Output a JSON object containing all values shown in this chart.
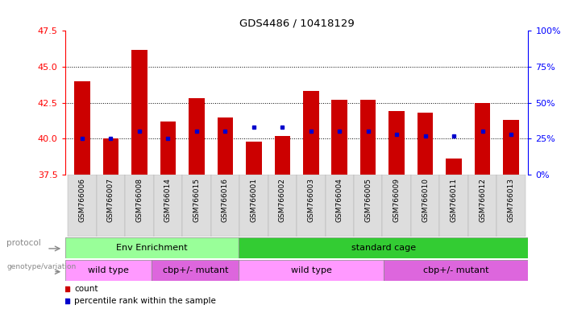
{
  "title": "GDS4486 / 10418129",
  "samples": [
    "GSM766006",
    "GSM766007",
    "GSM766008",
    "GSM766014",
    "GSM766015",
    "GSM766016",
    "GSM766001",
    "GSM766002",
    "GSM766003",
    "GSM766004",
    "GSM766005",
    "GSM766009",
    "GSM766010",
    "GSM766011",
    "GSM766012",
    "GSM766013"
  ],
  "counts": [
    44.0,
    40.0,
    46.2,
    41.2,
    42.8,
    41.5,
    39.8,
    40.2,
    43.3,
    42.7,
    42.7,
    41.9,
    41.8,
    38.6,
    42.5,
    41.3
  ],
  "percentiles": [
    25,
    25,
    30,
    25,
    30,
    30,
    33,
    33,
    30,
    30,
    30,
    28,
    27,
    27,
    30,
    28
  ],
  "ylim_left": [
    37.5,
    47.5
  ],
  "ylim_right": [
    0,
    100
  ],
  "yticks_left": [
    37.5,
    40.0,
    42.5,
    45.0,
    47.5
  ],
  "yticks_right": [
    0,
    25,
    50,
    75,
    100
  ],
  "bar_color": "#cc0000",
  "dot_color": "#0000cc",
  "protocol_groups": [
    {
      "label": "Env Enrichment",
      "start": 0,
      "end": 6,
      "color": "#99ff99"
    },
    {
      "label": "standard cage",
      "start": 6,
      "end": 16,
      "color": "#33cc33"
    }
  ],
  "genotype_groups": [
    {
      "label": "wild type",
      "start": 0,
      "end": 3,
      "color": "#ff99ff"
    },
    {
      "label": "cbp+/- mutant",
      "start": 3,
      "end": 6,
      "color": "#dd66dd"
    },
    {
      "label": "wild type",
      "start": 6,
      "end": 11,
      "color": "#ff99ff"
    },
    {
      "label": "cbp+/- mutant",
      "start": 11,
      "end": 16,
      "color": "#dd66dd"
    }
  ],
  "legend_items": [
    {
      "label": "count",
      "color": "#cc0000"
    },
    {
      "label": "percentile rank within the sample",
      "color": "#0000cc"
    }
  ],
  "base_value": 37.5,
  "figsize": [
    7.01,
    3.84
  ],
  "dpi": 100
}
